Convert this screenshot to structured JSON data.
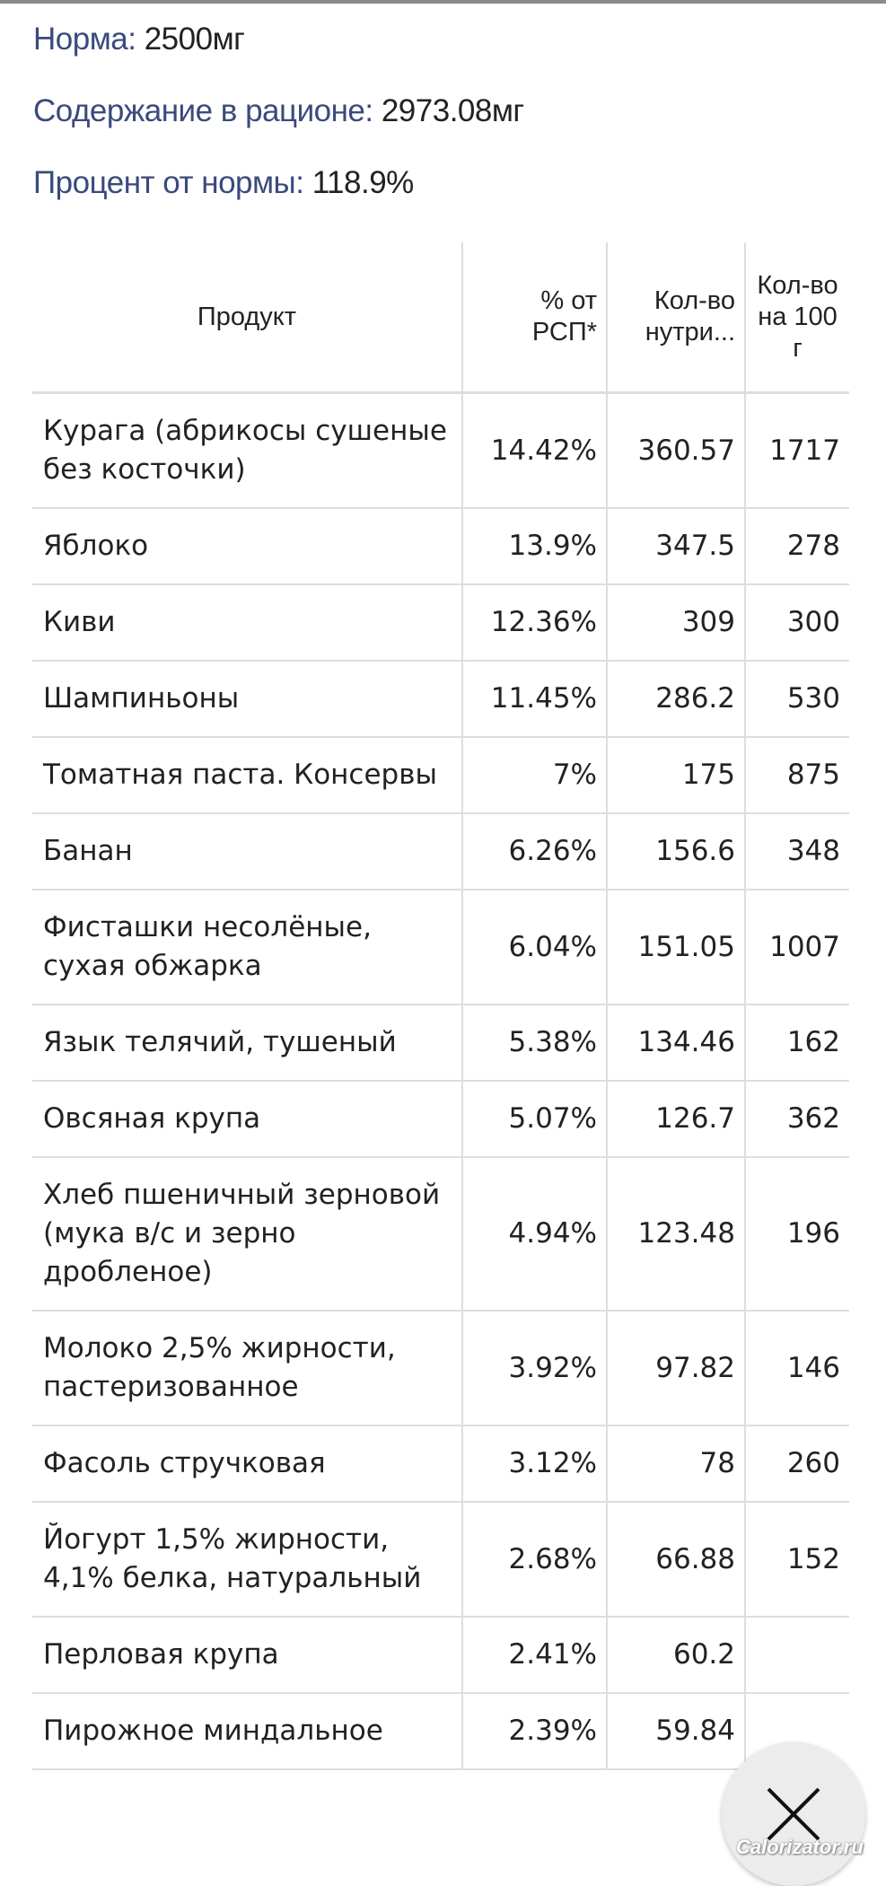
{
  "summary": {
    "norm_label": "Норма:",
    "norm_value": "2500мг",
    "content_label": "Содержание в рационе:",
    "content_value": "2973.08мг",
    "percent_label": "Процент от нормы:",
    "percent_value": "118.9%"
  },
  "table": {
    "headers": [
      "Продукт",
      "% от РСП*",
      "Кол-во нутри...",
      "Кол-во на 100 г"
    ],
    "rows": [
      [
        "Курага (абрикосы сушеные без косточки)",
        "14.42%",
        "360.57",
        "1717"
      ],
      [
        "Яблоко",
        "13.9%",
        "347.5",
        "278"
      ],
      [
        "Киви",
        "12.36%",
        "309",
        "300"
      ],
      [
        "Шампиньоны",
        "11.45%",
        "286.2",
        "530"
      ],
      [
        "Томатная паста. Консервы",
        "7%",
        "175",
        "875"
      ],
      [
        "Банан",
        "6.26%",
        "156.6",
        "348"
      ],
      [
        "Фисташки несолёные, сухая обжарка",
        "6.04%",
        "151.05",
        "1007"
      ],
      [
        "Язык телячий, тушеный",
        "5.38%",
        "134.46",
        "162"
      ],
      [
        "Овсяная крупа",
        "5.07%",
        "126.7",
        "362"
      ],
      [
        "Хлеб пшеничный зерновой (мука в/с и зерно дробленое)",
        "4.94%",
        "123.48",
        "196"
      ],
      [
        "Молоко 2,5% жирности, пастеризованное",
        "3.92%",
        "97.82",
        "146"
      ],
      [
        "Фасоль стручковая",
        "3.12%",
        "78",
        "260"
      ],
      [
        "Йогурт 1,5% жирности, 4,1% белка, натуральный",
        "2.68%",
        "66.88",
        "152"
      ],
      [
        "Перловая крупа",
        "2.41%",
        "60.2",
        ""
      ],
      [
        "Пирожное миндальное",
        "2.39%",
        "59.84",
        ""
      ]
    ]
  },
  "close_button": {
    "icon": "close-icon"
  },
  "watermark": "Calorizator.ru"
}
